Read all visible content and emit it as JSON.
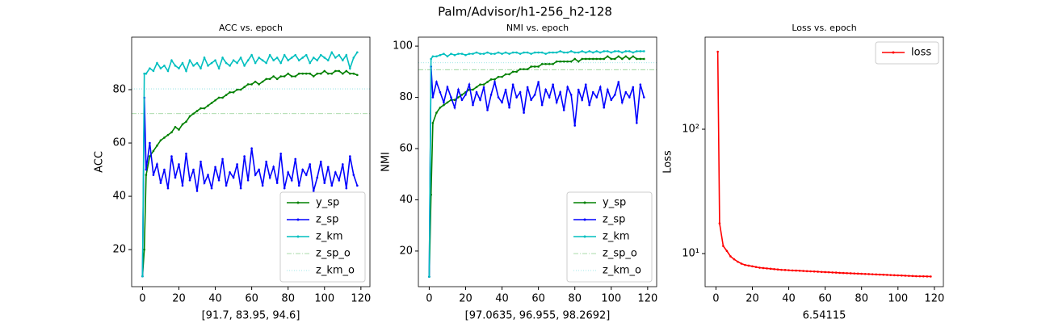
{
  "title": "Palm/Advisor/h1-256_h2-128",
  "chart_data": [
    {
      "type": "line",
      "title": "ACC vs. epoch",
      "xlabel": "[91.7, 83.95, 94.6]",
      "ylabel": "ACC",
      "x": [
        0,
        1,
        2,
        4,
        6,
        8,
        10,
        12,
        14,
        16,
        18,
        20,
        22,
        24,
        26,
        28,
        30,
        32,
        34,
        36,
        38,
        40,
        42,
        44,
        46,
        48,
        50,
        52,
        54,
        56,
        58,
        60,
        62,
        64,
        66,
        68,
        70,
        72,
        74,
        76,
        78,
        80,
        82,
        84,
        86,
        88,
        90,
        92,
        94,
        96,
        98,
        100,
        102,
        104,
        106,
        108,
        110,
        112,
        114,
        116,
        118
      ],
      "series": [
        {
          "name": "y_sp",
          "color": "#008000",
          "values": [
            10,
            20,
            48,
            55,
            57,
            59,
            61,
            62,
            63,
            64,
            66,
            65,
            67,
            68,
            70,
            71,
            72,
            73,
            73,
            74,
            75,
            76,
            77,
            77,
            78,
            79,
            79,
            80,
            80,
            81,
            82,
            82,
            83,
            82,
            83,
            84,
            84,
            85,
            84,
            85,
            85,
            86,
            85,
            85,
            86,
            86,
            86,
            86,
            85,
            86,
            86,
            87,
            86,
            86,
            87,
            87,
            86,
            87,
            86,
            86,
            85.5
          ]
        },
        {
          "name": "z_sp",
          "color": "#0000ff",
          "values": [
            10,
            77,
            50,
            60,
            48,
            52,
            45,
            50,
            43,
            55,
            47,
            52,
            44,
            56,
            46,
            50,
            42,
            53,
            45,
            48,
            43,
            51,
            46,
            54,
            44,
            49,
            47,
            52,
            43,
            55,
            46,
            58,
            48,
            50,
            44,
            53,
            47,
            51,
            45,
            56,
            43,
            49,
            46,
            54,
            44,
            50,
            48,
            52,
            42,
            47,
            53,
            45,
            51,
            44,
            49,
            46,
            52,
            43,
            55,
            48,
            44
          ]
        },
        {
          "name": "z_km",
          "color": "#00bfbf",
          "values": [
            10,
            86,
            86,
            88,
            87,
            90,
            88,
            89,
            87,
            91,
            89,
            88,
            90,
            87,
            91,
            89,
            90,
            88,
            92,
            89,
            90,
            91,
            88,
            92,
            90,
            89,
            91,
            90,
            92,
            89,
            91,
            93,
            90,
            92,
            91,
            90,
            93,
            91,
            92,
            90,
            93,
            91,
            92,
            93,
            91,
            92,
            93,
            90,
            92,
            91,
            93,
            92,
            91,
            94,
            92,
            93,
            91,
            93,
            88,
            92,
            94
          ]
        }
      ],
      "reference_lines": [
        {
          "name": "z_sp_o",
          "color": "#8fcf8f",
          "style": "dashdot",
          "value": 71
        },
        {
          "name": "z_km_o",
          "color": "#80dfdf",
          "style": "dotted",
          "value": 80.3
        }
      ],
      "xlim": [
        -5.95,
        124.95
      ],
      "ylim": [
        6.1,
        99.7
      ],
      "xticks": [
        0,
        20,
        40,
        60,
        80,
        100,
        120
      ],
      "yticks": [
        20,
        40,
        60,
        80
      ],
      "legend": "lower right"
    },
    {
      "type": "line",
      "title": "NMI vs. epoch",
      "xlabel": "[97.0635, 96.955, 98.2692]",
      "ylabel": "NMI",
      "x": [
        0,
        1,
        2,
        4,
        6,
        8,
        10,
        12,
        14,
        16,
        18,
        20,
        22,
        24,
        26,
        28,
        30,
        32,
        34,
        36,
        38,
        40,
        42,
        44,
        46,
        48,
        50,
        52,
        54,
        56,
        58,
        60,
        62,
        64,
        66,
        68,
        70,
        72,
        74,
        76,
        78,
        80,
        82,
        84,
        86,
        88,
        90,
        92,
        94,
        96,
        98,
        100,
        102,
        104,
        106,
        108,
        110,
        112,
        114,
        116,
        118
      ],
      "series": [
        {
          "name": "y_sp",
          "color": "#008000",
          "values": [
            10,
            42,
            70,
            74,
            76,
            77,
            78,
            79,
            79,
            80,
            81,
            82,
            83,
            83,
            84,
            85,
            85,
            86,
            87,
            87,
            88,
            88,
            89,
            89,
            90,
            90,
            91,
            91,
            91,
            92,
            92,
            92,
            93,
            93,
            93,
            93,
            94,
            94,
            94,
            94,
            94,
            95,
            94,
            95,
            95,
            95,
            95,
            95,
            95,
            95,
            96,
            95,
            95,
            96,
            95,
            96,
            95,
            96,
            95,
            95,
            95
          ]
        },
        {
          "name": "z_sp",
          "color": "#0000ff",
          "values": [
            10,
            92,
            80,
            86,
            82,
            78,
            84,
            80,
            76,
            83,
            79,
            81,
            85,
            77,
            82,
            79,
            84,
            75,
            81,
            86,
            80,
            78,
            83,
            76,
            85,
            80,
            82,
            74,
            84,
            79,
            81,
            86,
            77,
            83,
            80,
            85,
            78,
            82,
            75,
            84,
            81,
            69,
            83,
            79,
            85,
            77,
            82,
            80,
            84,
            76,
            83,
            79,
            81,
            86,
            78,
            82,
            80,
            84,
            70,
            85,
            80
          ]
        },
        {
          "name": "z_km",
          "color": "#00bfbf",
          "values": [
            10,
            95,
            96,
            96,
            96.5,
            97,
            96,
            97,
            96.5,
            97,
            97,
            96.5,
            97,
            97,
            97.5,
            97,
            97,
            97.5,
            97,
            97,
            97.5,
            97,
            97.5,
            97,
            97.5,
            97.5,
            97,
            97.5,
            97.5,
            97,
            97.5,
            97.5,
            97.5,
            97,
            97.5,
            97.5,
            97.5,
            98,
            97.5,
            97.5,
            98,
            97.5,
            97.5,
            98,
            97.5,
            98,
            97.5,
            98,
            97.5,
            98,
            98,
            97.5,
            98,
            98,
            97.5,
            98,
            98,
            97.5,
            98,
            98,
            98
          ]
        }
      ],
      "reference_lines": [
        {
          "name": "z_sp_o",
          "color": "#8fcf8f",
          "style": "dashdot",
          "value": 90.8
        },
        {
          "name": "z_km_o",
          "color": "#80dfdf",
          "style": "dotted",
          "value": 93.5
        }
      ],
      "xlim": [
        -5.95,
        124.95
      ],
      "ylim": [
        6.1,
        103.5
      ],
      "xticks": [
        0,
        20,
        40,
        60,
        80,
        100,
        120
      ],
      "yticks": [
        20,
        40,
        60,
        80,
        100
      ],
      "legend": "lower right"
    },
    {
      "type": "line",
      "title": "Loss vs. epoch",
      "xlabel": "6.54115",
      "ylabel": "Loss",
      "yscale": "log",
      "x": [
        1,
        2,
        4,
        6,
        8,
        10,
        12,
        14,
        16,
        18,
        20,
        22,
        24,
        26,
        28,
        30,
        32,
        34,
        36,
        38,
        40,
        42,
        44,
        46,
        48,
        50,
        52,
        54,
        56,
        58,
        60,
        62,
        64,
        66,
        68,
        70,
        72,
        74,
        76,
        78,
        80,
        82,
        84,
        86,
        88,
        90,
        92,
        94,
        96,
        98,
        100,
        102,
        104,
        106,
        108,
        110,
        112,
        114,
        116,
        118
      ],
      "series": [
        {
          "name": "loss",
          "color": "#ff0000",
          "values": [
            420,
            17.5,
            11.5,
            10.5,
            9.5,
            9,
            8.6,
            8.3,
            8.1,
            8.0,
            7.9,
            7.8,
            7.7,
            7.65,
            7.6,
            7.55,
            7.5,
            7.45,
            7.4,
            7.38,
            7.35,
            7.32,
            7.3,
            7.28,
            7.25,
            7.22,
            7.2,
            7.18,
            7.15,
            7.12,
            7.1,
            7.08,
            7.05,
            7.03,
            7.0,
            6.98,
            6.96,
            6.94,
            6.92,
            6.9,
            6.88,
            6.86,
            6.84,
            6.82,
            6.8,
            6.78,
            6.76,
            6.74,
            6.72,
            6.7,
            6.68,
            6.66,
            6.64,
            6.62,
            6.6,
            6.58,
            6.57,
            6.56,
            6.55,
            6.54
          ]
        }
      ],
      "reference_lines": [],
      "xlim": [
        -5.95,
        124.95
      ],
      "ylim": [
        5.42,
        550
      ],
      "xticks": [
        0,
        20,
        40,
        60,
        80,
        100,
        120
      ],
      "yticks": [
        {
          "value": 10,
          "label": "10¹"
        },
        {
          "value": 100,
          "label": "10²"
        }
      ],
      "legend": "upper right"
    }
  ]
}
